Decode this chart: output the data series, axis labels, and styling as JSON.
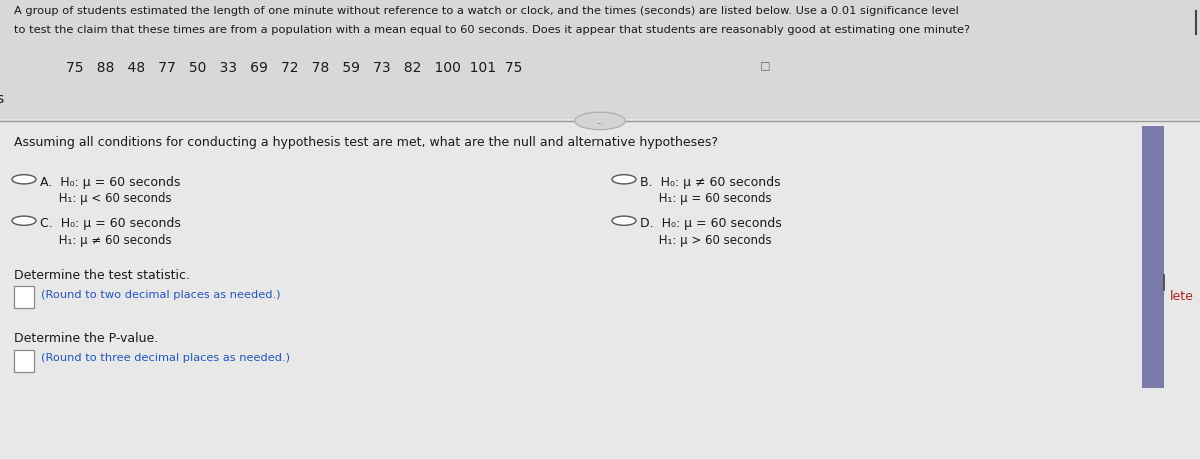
{
  "bg_color": "#c8c8c8",
  "top_bg": "#d8d8d8",
  "bottom_bg": "#e0e0e0",
  "title_text_line1": "A group of students estimated the length of one minute without reference to a watch or clock, and the times (seconds) are listed below. Use a 0.01 significance level",
  "title_text_line2": "to test the claim that these times are from a population with a mean equal to 60 seconds. Does it appear that students are reasonably good at estimating one minute?",
  "data_values": "75   88   48   77   50   33   69   72   78   59   73   82   100  101  75",
  "separator_label": "...",
  "section_text": "Assuming all conditions for conducting a hypothesis test are met, what are the null and alternative hypotheses?",
  "optA_1": "A.  H₀: μ = 60 seconds",
  "optA_2": "     H₁: μ < 60 seconds",
  "optB_1": "B.  H₀: μ ≠ 60 seconds",
  "optB_2": "     H₁: μ = 60 seconds",
  "optC_1": "C.  H₀: μ = 60 seconds",
  "optC_2": "     H₁: μ ≠ 60 seconds",
  "optD_1": "D.  H₀: μ = 60 seconds",
  "optD_2": "     H₁: μ > 60 seconds",
  "stat_label": "Determine the test statistic.",
  "stat_hint": "(Round to two decimal places as needed.)",
  "pval_label": "Determine the P-value.",
  "pval_hint": "(Round to three decimal places as needed.)",
  "left_s": "s",
  "right_lete": "lete",
  "text_color": "#1a1a1a",
  "hint_color": "#2255bb",
  "right_bar_color": "#7a7aaa",
  "lete_color": "#aa2222",
  "separator_line_color": "#999999",
  "radio_edge_color": "#555555",
  "box_edge_color": "#888888",
  "top_right_mark_color": "#333333",
  "font_size_title": 8.2,
  "font_size_data": 10.0,
  "font_size_section": 9.0,
  "font_size_option_main": 9.0,
  "font_size_option_sub": 8.5,
  "font_size_stat": 9.0,
  "font_size_hint": 8.2,
  "font_size_lete": 9.0,
  "radio_size": 0.01
}
